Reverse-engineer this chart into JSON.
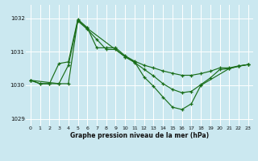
{
  "background_color": "#cbe8f0",
  "grid_color": "#ffffff",
  "line_color": "#1a6e1a",
  "xlabel": "Graphe pression niveau de la mer (hPa)",
  "ylim": [
    1028.8,
    1032.4
  ],
  "xlim": [
    -0.5,
    23.5
  ],
  "yticks": [
    1029,
    1030,
    1031,
    1032
  ],
  "xticks": [
    0,
    1,
    2,
    3,
    4,
    5,
    6,
    7,
    8,
    9,
    10,
    11,
    12,
    13,
    14,
    15,
    16,
    17,
    18,
    19,
    20,
    21,
    22,
    23
  ],
  "s1_x": [
    0,
    1,
    2,
    3,
    4,
    5,
    6,
    7,
    8,
    9,
    10,
    11,
    12,
    13,
    14,
    15,
    16,
    17,
    18,
    19,
    20,
    21,
    22,
    23
  ],
  "s1_y": [
    1030.15,
    1030.05,
    1030.05,
    1030.65,
    1030.7,
    1031.97,
    1031.72,
    1031.12,
    1031.12,
    1031.12,
    1030.88,
    1030.72,
    1030.6,
    1030.52,
    1030.43,
    1030.36,
    1030.3,
    1030.3,
    1030.35,
    1030.42,
    1030.52,
    1030.52,
    1030.58,
    1030.62
  ],
  "s2_x": [
    0,
    1,
    2,
    3,
    4,
    5,
    6,
    7,
    8,
    9,
    10,
    11,
    12,
    13,
    14,
    15,
    16,
    17,
    18,
    19,
    20,
    21,
    22,
    23
  ],
  "s2_y": [
    1030.15,
    1030.05,
    1030.05,
    1030.05,
    1030.6,
    1031.92,
    1031.67,
    1031.37,
    1031.07,
    1031.07,
    1030.85,
    1030.68,
    1030.48,
    1030.28,
    1030.05,
    1029.88,
    1029.78,
    1029.82,
    1030.02,
    1030.22,
    1030.47,
    1030.5,
    1030.57,
    1030.62
  ],
  "s3_x": [
    0,
    3,
    4,
    5,
    6,
    10,
    11,
    12,
    13,
    14,
    15,
    16,
    17,
    18,
    21,
    22,
    23
  ],
  "s3_y": [
    1030.15,
    1030.05,
    1030.05,
    1031.95,
    1031.7,
    1030.85,
    1030.7,
    1030.25,
    1029.97,
    1029.65,
    1029.35,
    1029.28,
    1029.45,
    1030.0,
    1030.5,
    1030.57,
    1030.62
  ]
}
